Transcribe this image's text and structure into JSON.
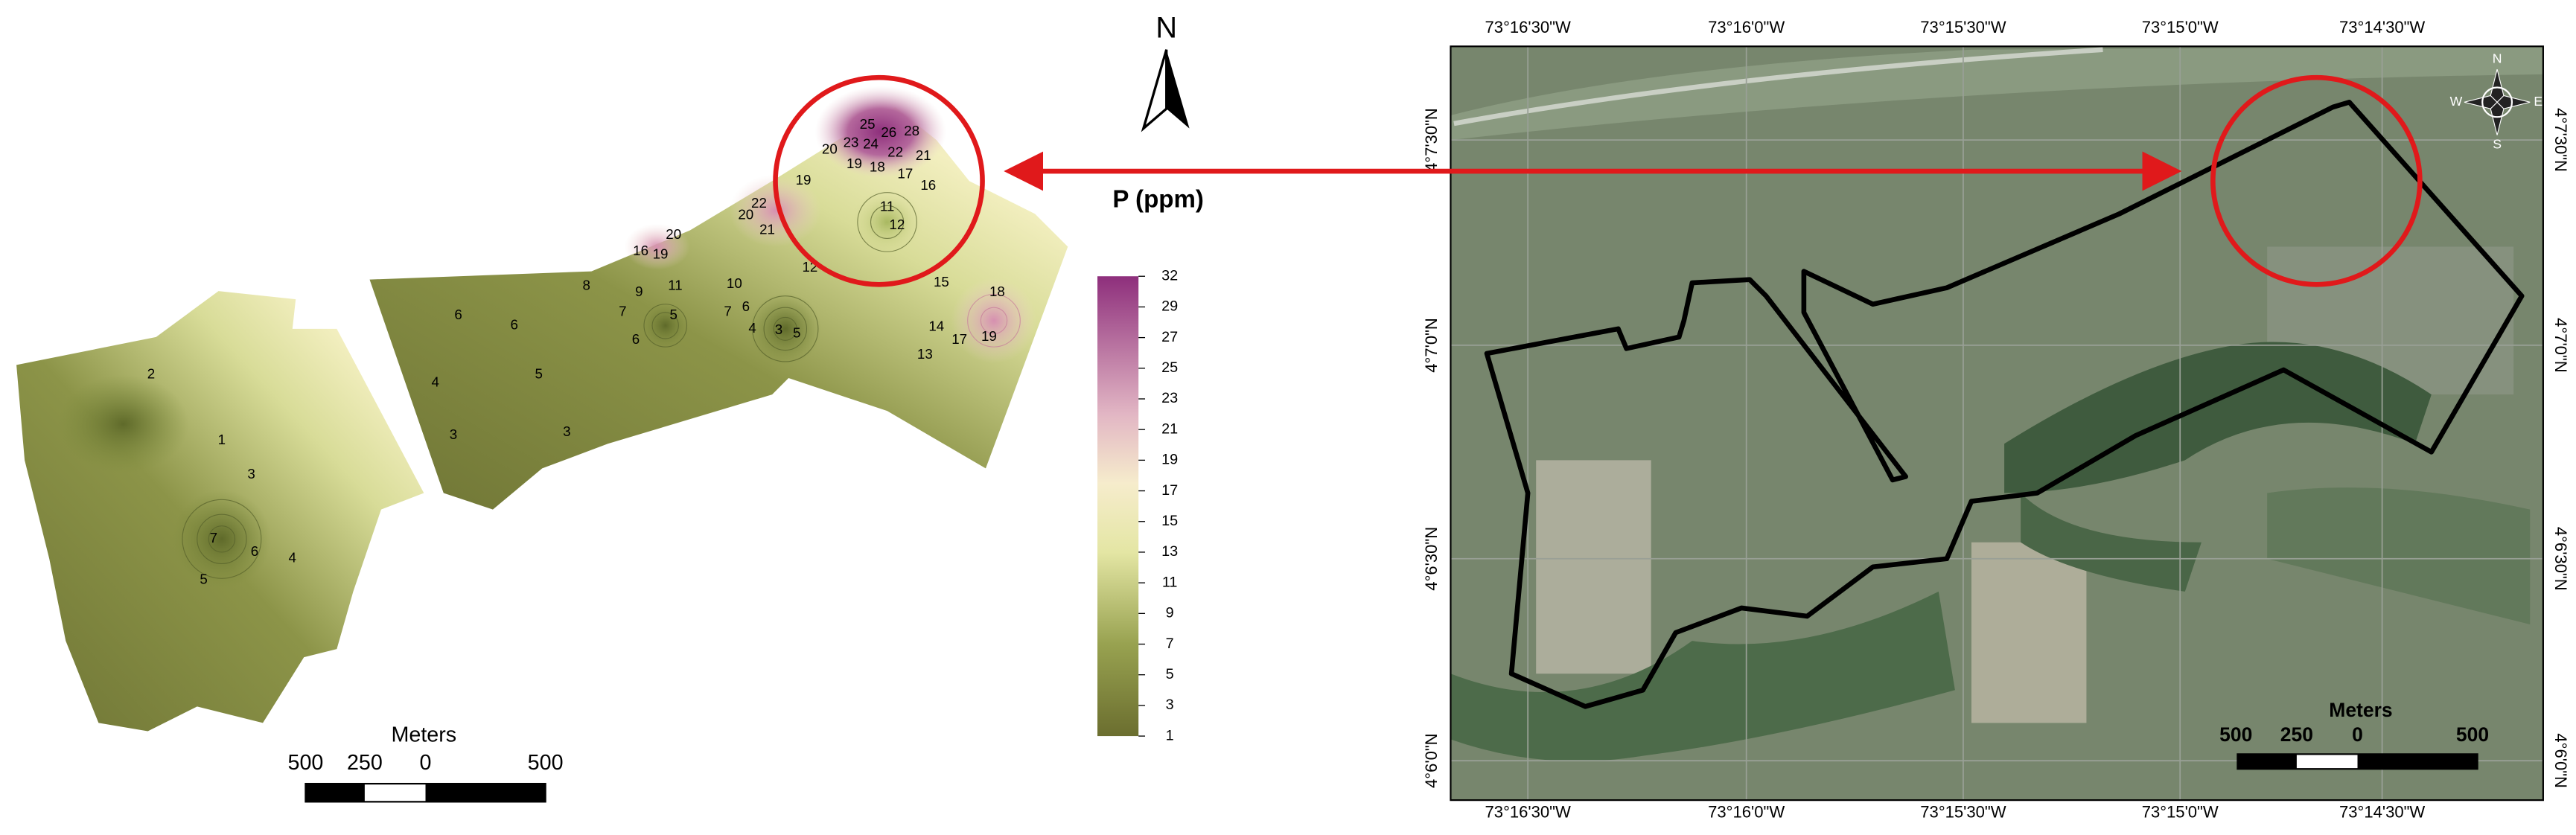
{
  "left_map": {
    "north": "N",
    "contour_labels": [
      2,
      1,
      3,
      7,
      6,
      4,
      5,
      3,
      4,
      5,
      6,
      6,
      7,
      8,
      9,
      11,
      5,
      6,
      10,
      7,
      6,
      4,
      3,
      5,
      3,
      12,
      16,
      19,
      20,
      22,
      20,
      21,
      19,
      11,
      12,
      20,
      19,
      18,
      17,
      16,
      22,
      24,
      23,
      25,
      26,
      28,
      21,
      15,
      14,
      17,
      13,
      18,
      19
    ],
    "legend": {
      "title": "P (ppm)",
      "ticks": [
        32,
        29,
        27,
        25,
        23,
        21,
        19,
        17,
        15,
        13,
        11,
        9,
        7,
        5,
        3,
        1
      ]
    },
    "scale_bar": {
      "unit": "Meters",
      "labels": [
        500,
        250,
        0,
        500
      ]
    }
  },
  "right_map": {
    "top_labels": [
      "73°16'30\"W",
      "73°16'0\"W",
      "73°15'30\"W",
      "73°15'0\"W",
      "73°14'30\"W"
    ],
    "bottom_labels": [
      "73°16'30\"W",
      "73°16'0\"W",
      "73°15'30\"W",
      "73°15'0\"W",
      "73°14'30\"W"
    ],
    "left_labels": [
      "4°7'30\"N",
      "4°7'0\"N",
      "4°6'30\"N",
      "4°6'0\"N"
    ],
    "right_labels": [
      "4°7'30\"N",
      "4°7'0\"N",
      "4°6'30\"N",
      "4°6'0\"N"
    ],
    "compass": [
      "N",
      "S",
      "E",
      "W"
    ],
    "scale_bar": {
      "unit": "Meters",
      "labels": [
        500,
        250,
        0,
        500
      ]
    }
  }
}
